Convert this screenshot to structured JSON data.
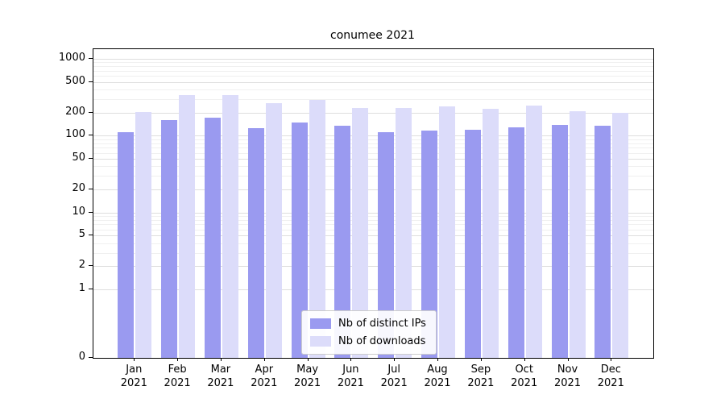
{
  "title": "conumee 2021",
  "chart_data": {
    "type": "bar",
    "title": "conumee 2021",
    "yscale": "log",
    "grid": true,
    "legend_position": "bottom-center-inside",
    "year": "2021",
    "categories": [
      "Jan",
      "Feb",
      "Mar",
      "Apr",
      "May",
      "Jun",
      "Jul",
      "Aug",
      "Sep",
      "Oct",
      "Nov",
      "Dec"
    ],
    "yticks": [
      0,
      1,
      2,
      5,
      10,
      20,
      50,
      100,
      200,
      500,
      1000
    ],
    "ylim": [
      0,
      1400
    ],
    "series": [
      {
        "name": "Nb of distinct IPs",
        "color": "#9a9af0",
        "values": [
          110,
          160,
          170,
          125,
          150,
          135,
          112,
          117,
          120,
          130,
          137,
          135
        ]
      },
      {
        "name": "Nb of downloads",
        "color": "#dcdcfa",
        "values": [
          205,
          340,
          335,
          265,
          290,
          232,
          228,
          242,
          224,
          245,
          210,
          198
        ]
      }
    ]
  }
}
